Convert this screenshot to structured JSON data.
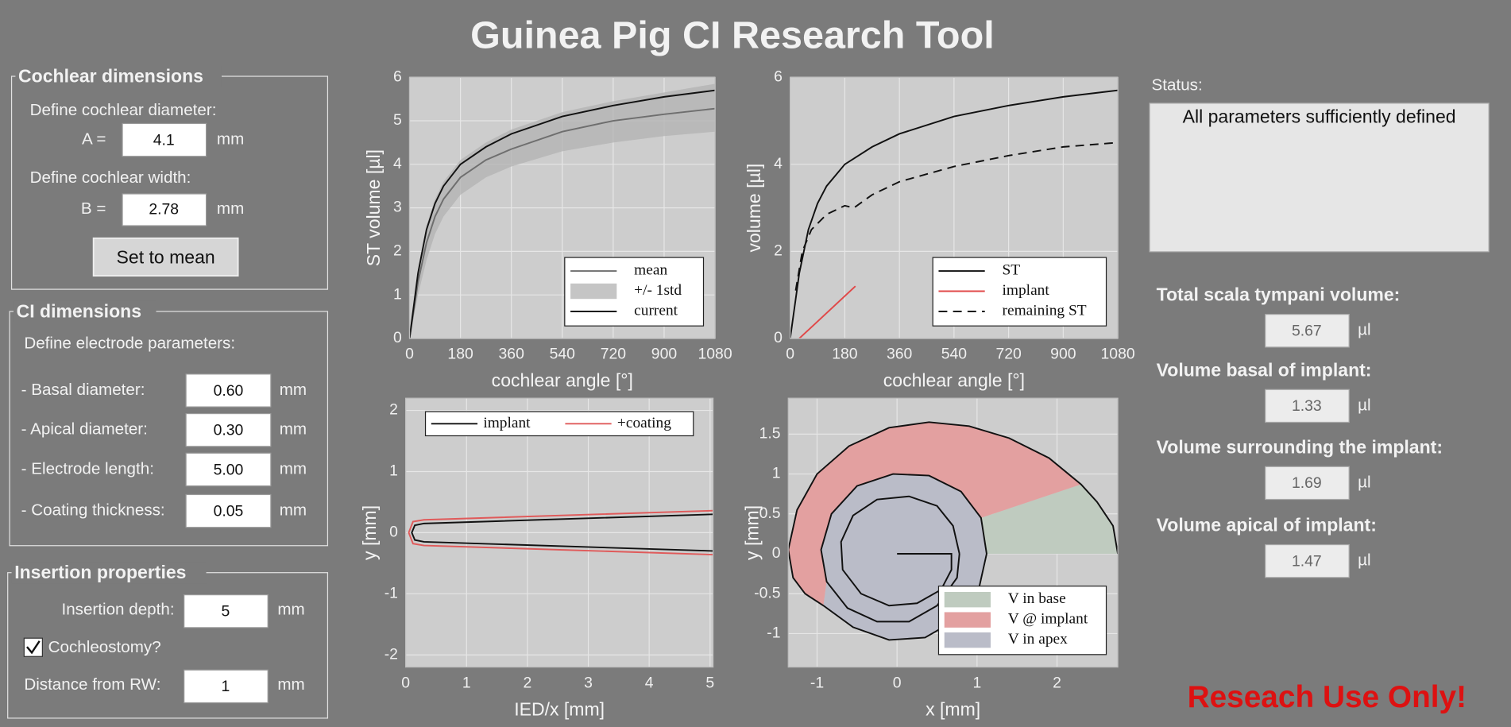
{
  "title": "Guinea Pig CI Research Tool",
  "cochlear": {
    "title": "Cochlear dimensions",
    "diameter_label": "Define cochlear diameter:",
    "a_label": "A =",
    "a_value": "4.1",
    "a_unit": "mm",
    "width_label": "Define cochlear width:",
    "b_label": "B =",
    "b_value": "2.78",
    "b_unit": "mm",
    "button": "Set to mean"
  },
  "ci": {
    "title": "CI dimensions",
    "label": "Define electrode parameters:",
    "fields": [
      {
        "label": "- Basal diameter:",
        "value": "0.60",
        "unit": "mm"
      },
      {
        "label": "- Apical diameter:",
        "value": "0.30",
        "unit": "mm"
      },
      {
        "label": "- Electrode length:",
        "value": "5.00",
        "unit": "mm"
      },
      {
        "label": "- Coating thickness:",
        "value": "0.05",
        "unit": "mm"
      }
    ]
  },
  "insertion": {
    "title": "Insertion properties",
    "depth_label": "Insertion depth:",
    "depth_value": "5",
    "depth_unit": "mm",
    "checkbox_label": "Cochleostomy?",
    "checkbox_checked": true,
    "distance_label": "Distance from RW:",
    "distance_value": "1",
    "distance_unit": "mm"
  },
  "status": {
    "label": "Status:",
    "text": "All parameters sufficiently defined"
  },
  "results": [
    {
      "label": "Total scala tympani volume:",
      "value": "5.67",
      "unit": "µl"
    },
    {
      "label": "Volume basal of implant:",
      "value": "1.33",
      "unit": "µl"
    },
    {
      "label": "Volume surrounding the implant:",
      "value": "1.69",
      "unit": "µl"
    },
    {
      "label": "Volume apical of implant:",
      "value": "1.47",
      "unit": "µl"
    }
  ],
  "footer": "Reseach Use Only!",
  "chart_data": [
    {
      "type": "line",
      "xlabel": "cochlear angle [°]",
      "ylabel": "ST volume [µl]",
      "xlim": [
        0,
        1080
      ],
      "xticks": [
        0,
        180,
        360,
        540,
        720,
        900,
        1080
      ],
      "ylim": [
        0,
        6
      ],
      "yticks": [
        0,
        1,
        2,
        3,
        4,
        5,
        6
      ],
      "grid": true,
      "legend": "southeast",
      "x": [
        0,
        30,
        60,
        90,
        120,
        180,
        270,
        360,
        540,
        720,
        900,
        1080
      ],
      "series": [
        {
          "name": "mean",
          "color": "#6e6e6e",
          "values": [
            0,
            1.3,
            2.2,
            2.8,
            3.2,
            3.7,
            4.1,
            4.35,
            4.75,
            5.0,
            5.15,
            5.28
          ]
        },
        {
          "name": "+/- 1std",
          "color": "#b2b2b2",
          "upper": [
            0,
            1.6,
            2.6,
            3.2,
            3.6,
            4.1,
            4.5,
            4.8,
            5.2,
            5.45,
            5.65,
            5.85
          ],
          "lower": [
            0,
            1.0,
            1.8,
            2.4,
            2.8,
            3.3,
            3.7,
            3.95,
            4.3,
            4.5,
            4.65,
            4.75
          ]
        },
        {
          "name": "current",
          "color": "#111111",
          "values": [
            0,
            1.5,
            2.5,
            3.1,
            3.5,
            4.0,
            4.4,
            4.7,
            5.1,
            5.35,
            5.55,
            5.7
          ]
        }
      ]
    },
    {
      "type": "line",
      "xlabel": "cochlear angle [°]",
      "ylabel": "volume [µl]",
      "xlim": [
        0,
        1080
      ],
      "xticks": [
        0,
        180,
        360,
        540,
        720,
        900,
        1080
      ],
      "ylim": [
        0,
        6
      ],
      "yticks": [
        0,
        2,
        4,
        6
      ],
      "grid": true,
      "legend": "southeast",
      "series": [
        {
          "name": "ST",
          "color": "#111111",
          "x": [
            0,
            30,
            60,
            90,
            120,
            180,
            270,
            360,
            540,
            720,
            900,
            1080
          ],
          "values": [
            0,
            1.5,
            2.5,
            3.1,
            3.5,
            4.0,
            4.4,
            4.7,
            5.1,
            5.35,
            5.55,
            5.7
          ]
        },
        {
          "name": "implant",
          "color": "#e04848",
          "x": [
            30,
            215
          ],
          "values": [
            0,
            1.2
          ]
        },
        {
          "name": "remaining ST",
          "color": "#111111",
          "dash": true,
          "x": [
            18,
            40,
            70,
            120,
            180,
            210,
            270,
            360,
            540,
            720,
            900,
            1080
          ],
          "values": [
            1.1,
            2.0,
            2.5,
            2.85,
            3.05,
            3.0,
            3.3,
            3.6,
            3.95,
            4.2,
            4.4,
            4.5
          ]
        }
      ]
    },
    {
      "type": "line",
      "xlabel": "IED/x [mm]",
      "ylabel": "y [mm]",
      "xlim": [
        0,
        5.05
      ],
      "xticks": [
        0,
        1,
        2,
        3,
        4,
        5
      ],
      "ylim": [
        -2.2,
        2.2
      ],
      "yticks": [
        -2,
        -1,
        0,
        1,
        2
      ],
      "grid": true,
      "legend": "north",
      "series": [
        {
          "name": "implant",
          "color": "#111111",
          "x": [
            5.05,
            0.3,
            0.15,
            0.1,
            0.15,
            0.3,
            5.05
          ],
          "values": [
            0.3,
            0.15,
            0.12,
            0,
            -0.12,
            -0.15,
            -0.3
          ]
        },
        {
          "name": "+coating",
          "color": "#e05a5a",
          "x": [
            5.05,
            0.3,
            0.12,
            0.05,
            0.12,
            0.3,
            5.05
          ],
          "values": [
            0.36,
            0.21,
            0.18,
            0,
            -0.18,
            -0.21,
            -0.36
          ]
        }
      ]
    },
    {
      "type": "area",
      "xlabel": "x [mm]",
      "ylabel": "y [mm]",
      "xlim": [
        -1.36,
        2.76
      ],
      "xticks": [
        -1,
        0,
        1,
        2
      ],
      "ylim": [
        -1.42,
        1.95
      ],
      "yticks": [
        -1,
        -0.5,
        0,
        0.5,
        1,
        1.5
      ],
      "grid": true,
      "legend": "southeast",
      "series": [
        {
          "name": "V in base",
          "fill": "#bfcbbf",
          "x": [
            2.76,
            2.7,
            2.5,
            2.3,
            1.05,
            1.12
          ],
          "values": [
            0,
            0.35,
            0.65,
            0.87,
            0.45,
            0
          ]
        },
        {
          "name": "V @ implant",
          "fill": "#e3a0a0",
          "x": [
            2.3,
            1.9,
            1.4,
            0.9,
            0.4,
            -0.1,
            -0.6,
            -1.0,
            -1.25,
            -1.36,
            -1.3,
            -1.15,
            -0.92,
            -0.88,
            -0.95,
            -0.82,
            -0.5,
            -0.05,
            0.4,
            0.8,
            1.05
          ],
          "values": [
            0.87,
            1.2,
            1.45,
            1.6,
            1.65,
            1.58,
            1.35,
            1.0,
            0.55,
            0.05,
            -0.3,
            -0.5,
            -0.65,
            -0.35,
            0.05,
            0.5,
            0.85,
            1.0,
            0.98,
            0.78,
            0.45
          ]
        },
        {
          "name": "V in apex",
          "fill": "#babcc8",
          "x": [
            1.12,
            1.05,
            0.8,
            0.4,
            -0.05,
            -0.5,
            -0.82,
            -0.95,
            -0.88,
            -0.92,
            -0.55,
            -0.1,
            0.35,
            0.75,
            1.02
          ],
          "values": [
            0,
            0.45,
            0.78,
            0.98,
            1.0,
            0.85,
            0.5,
            0.05,
            -0.35,
            -0.65,
            -0.92,
            -1.08,
            -1.05,
            -0.82,
            -0.45
          ]
        }
      ],
      "lines": [
        {
          "color": "#111111",
          "x": [
            2.76,
            2.7,
            2.5,
            2.3,
            1.9,
            1.4,
            0.9,
            0.4,
            -0.1,
            -0.6,
            -1.0,
            -1.25,
            -1.36,
            -1.3,
            -1.15,
            -0.92,
            -0.55,
            -0.1,
            0.35,
            0.75,
            1.02,
            1.12,
            1.05,
            0.8,
            0.4,
            -0.05,
            -0.5,
            -0.82,
            -0.95,
            -0.88,
            -0.62,
            -0.25,
            0.15,
            0.5,
            0.75,
            0.78
          ],
          "values": [
            0,
            0.35,
            0.65,
            0.87,
            1.2,
            1.45,
            1.6,
            1.65,
            1.58,
            1.35,
            1.0,
            0.55,
            0.05,
            -0.3,
            -0.5,
            -0.65,
            -0.92,
            -1.08,
            -1.05,
            -0.82,
            -0.45,
            0,
            0.45,
            0.78,
            0.98,
            1.0,
            0.85,
            0.5,
            0.05,
            -0.35,
            -0.68,
            -0.85,
            -0.85,
            -0.65,
            -0.3,
            0
          ]
        },
        {
          "color": "#111111",
          "x": [
            0,
            0.68,
            0.68,
            0.55,
            0.25,
            -0.1,
            -0.45,
            -0.68,
            -0.7,
            -0.55,
            -0.25,
            0.15,
            0.5,
            0.7,
            0.78
          ],
          "values": [
            0,
            0,
            -0.2,
            -0.45,
            -0.62,
            -0.65,
            -0.5,
            -0.2,
            0.15,
            0.48,
            0.68,
            0.72,
            0.6,
            0.35,
            0
          ]
        }
      ]
    }
  ]
}
